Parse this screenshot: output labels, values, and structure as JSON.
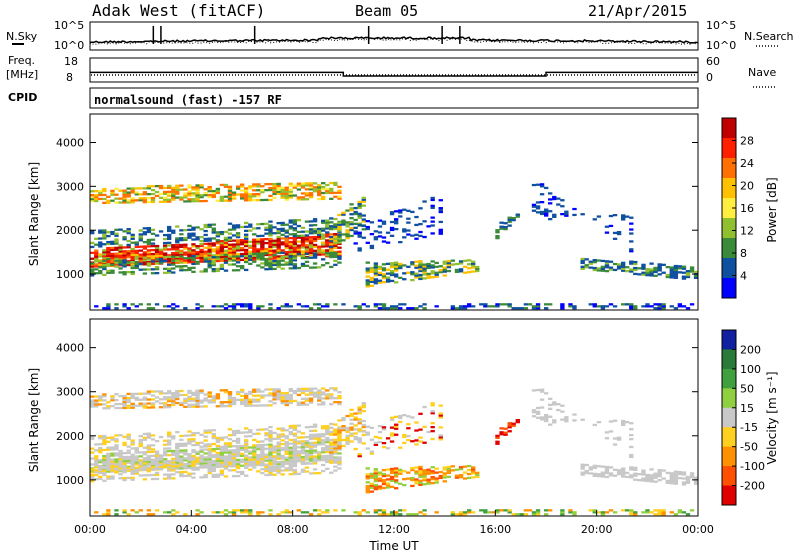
{
  "header": {
    "site": "Adak West (fitACF)",
    "beam": "Beam 05",
    "date": "21/Apr/2015"
  },
  "noise_panel": {
    "left_label": "N.Sky",
    "right_label": "N.Search",
    "left_ticks": [
      "10^5",
      "10^0"
    ],
    "right_ticks": [
      "10^5",
      "10^0"
    ]
  },
  "freq_panel": {
    "left_label_1": "Freq.",
    "left_label_2": "[MHz]",
    "left_ticks": [
      "18",
      "8"
    ],
    "right_label": "Nave",
    "right_ticks": [
      "60",
      "0"
    ],
    "freq_steps": [
      [
        0,
        12
      ],
      [
        10,
        12
      ],
      [
        10,
        10.5
      ],
      [
        18,
        10.5
      ],
      [
        18,
        12
      ],
      [
        24,
        12
      ]
    ]
  },
  "cpid": {
    "label": "CPID",
    "text": "normalsound (fast) -157 RF"
  },
  "chart_data": [
    {
      "type": "heatmap",
      "title": "Power",
      "ylabel": "Slant Range [km]",
      "xlabel": "",
      "ylim": [
        180,
        4650
      ],
      "xlim": [
        0,
        24
      ],
      "ytick_labels": [
        "1000",
        "2000",
        "3000",
        "4000"
      ],
      "colorbar": {
        "label": "Power [dB]",
        "tick_labels": [
          "28",
          "24",
          "20",
          "16",
          "12",
          "8",
          "4"
        ],
        "colors": [
          "#c00000",
          "#ff2000",
          "#ff7000",
          "#ffc000",
          "#ffee40",
          "#90c030",
          "#3a8a3a",
          "#1050a0",
          "#0000ff"
        ]
      }
    },
    {
      "type": "heatmap",
      "title": "Velocity",
      "ylabel": "Slant Range [km]",
      "xlabel": "Time UT",
      "ylim": [
        180,
        4650
      ],
      "xlim": [
        0,
        24
      ],
      "ytick_labels": [
        "1000",
        "2000",
        "3000",
        "4000"
      ],
      "xtick_labels": [
        "00:00",
        "04:00",
        "08:00",
        "12:00",
        "16:00",
        "20:00",
        "00:00"
      ],
      "colorbar": {
        "label": "Velocity [m s⁻¹]",
        "tick_labels": [
          "200",
          "100",
          "50",
          "15",
          "-15",
          "-50",
          "-100",
          "-200"
        ],
        "colors": [
          "#1020a0",
          "#2a7a3a",
          "#40a040",
          "#90d040",
          "#c8c8c8",
          "#ffd020",
          "#ff9000",
          "#ff5000",
          "#e00000"
        ]
      }
    }
  ]
}
